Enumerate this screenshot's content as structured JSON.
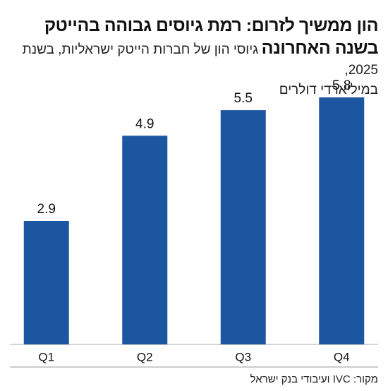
{
  "chart_data": {
    "type": "bar",
    "title": "הון ממשיך לזרום: רמת גיוסים גבוהה בהייטק בשנה האחרונה",
    "subtitle": "גיוסי הון של חברות הייטק ישראליות, בשנת 2025,",
    "unit_label": "במיליארדי דולרים",
    "categories": [
      "Q1",
      "Q2",
      "Q3",
      "Q4"
    ],
    "values": [
      2.9,
      4.9,
      5.5,
      5.8
    ],
    "color": "#1d56a0",
    "ylim": [
      0,
      5.8
    ],
    "source": "מקור: IVC ועיבודי בנק ישראל"
  }
}
